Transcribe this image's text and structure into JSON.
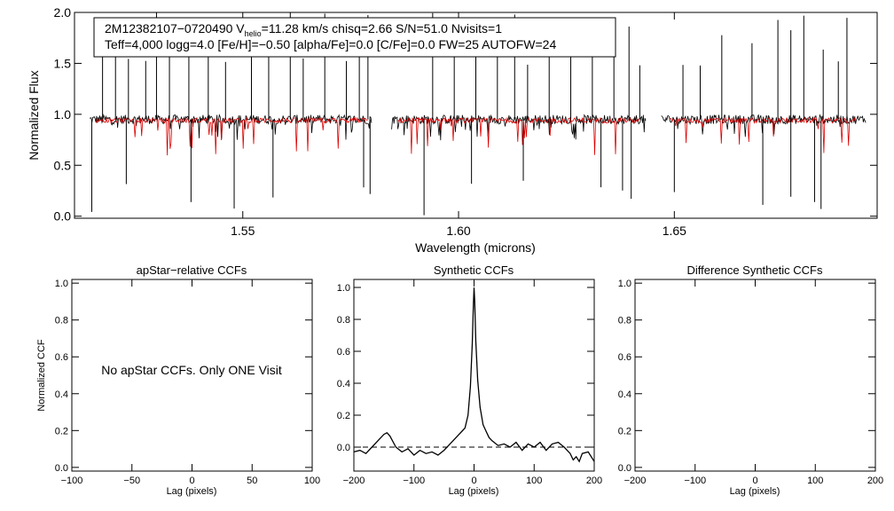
{
  "chart_data": [
    {
      "type": "line",
      "name": "spectrum",
      "xlabel": "Wavelength (microns)",
      "ylabel": "Normalized Flux",
      "xlim": [
        1.511,
        1.697
      ],
      "ylim": [
        -0.02,
        2.0
      ],
      "xticks": [
        1.55,
        1.6,
        1.65
      ],
      "xtick_labels": [
        "1.55",
        "1.60",
        "1.65"
      ],
      "yticks": [
        0.0,
        0.5,
        1.0,
        1.5,
        2.0
      ],
      "ytick_labels": [
        "0.0",
        "0.5",
        "1.0",
        "1.5",
        "2.0"
      ],
      "info_line1": {
        "pre": "2M12382107−0720490  V",
        "sub": "helio",
        "post": "=11.28 km/s  chisq=2.66  S/N=51.0  Nvisits=1"
      },
      "info_line2": "Teff=4,000 logg=4.0 [Fe/H]=−0.50 [alpha/Fe]=0.0 [C/Fe]=0.0 FW=25 AUTOFW=24",
      "chips": [
        [
          1.5145,
          1.58
        ],
        [
          1.5845,
          1.6435
        ],
        [
          1.647,
          1.6945
        ]
      ],
      "model_chips": [
        [
          1.516,
          1.579
        ],
        [
          1.586,
          1.642
        ],
        [
          1.649,
          1.692
        ]
      ],
      "observed_color": "#000000",
      "model_color": "#dd0000",
      "continuum_level": 0.95,
      "upward_spikes": [
        1.5175,
        1.5205,
        1.5235,
        1.5275,
        1.53,
        1.533,
        1.5375,
        1.542,
        1.546,
        1.552,
        1.556,
        1.561,
        1.564,
        1.569,
        1.574,
        1.577,
        1.579,
        1.594,
        1.599,
        1.604,
        1.609,
        1.613,
        1.616,
        1.621,
        1.626,
        1.631,
        1.636,
        1.6395,
        1.642,
        1.652,
        1.656,
        1.661,
        1.668,
        1.674,
        1.677,
        1.68,
        1.6845,
        1.688,
        1.69
      ],
      "downward_spikes": [
        1.515,
        1.523,
        1.538,
        1.548,
        1.557,
        1.578,
        1.5795,
        1.592,
        1.603,
        1.615,
        1.633,
        1.638,
        1.64,
        1.65,
        1.6705,
        1.677,
        1.6825,
        1.684
      ]
    },
    {
      "type": "line",
      "name": "apstar-ccf",
      "title": "apStar−relative CCFs",
      "xlabel": "Lag (pixels)",
      "ylabel": "Normalized CCF",
      "xlim": [
        -100,
        100
      ],
      "ylim": [
        -0.02,
        1.02
      ],
      "xticks": [
        -100,
        -50,
        0,
        50,
        100
      ],
      "xtick_labels": [
        "−100",
        "−50",
        "0",
        "50",
        "100"
      ],
      "yticks": [
        0.0,
        0.2,
        0.4,
        0.6,
        0.8,
        1.0
      ],
      "ytick_labels": [
        "0.0",
        "0.2",
        "0.4",
        "0.6",
        "0.8",
        "1.0"
      ],
      "annotation": "No apStar CCFs.  Only ONE Visit",
      "series": []
    },
    {
      "type": "line",
      "name": "synthetic-ccf",
      "title": "Synthetic CCFs",
      "xlabel": "Lag (pixels)",
      "ylabel": "",
      "xlim": [
        -200,
        200
      ],
      "ylim": [
        -0.15,
        1.05
      ],
      "xticks": [
        -200,
        -100,
        0,
        100,
        200
      ],
      "xtick_labels": [
        "−200",
        "−100",
        "0",
        "100",
        "200"
      ],
      "yticks": [
        0.0,
        0.2,
        0.4,
        0.6,
        0.8,
        1.0
      ],
      "ytick_labels": [
        "0.0",
        "0.2",
        "0.4",
        "0.6",
        "0.8",
        "1.0"
      ],
      "zero_line": 0.0,
      "series": [
        {
          "x": [
            -200,
            -190,
            -180,
            -170,
            -160,
            -150,
            -145,
            -140,
            -130,
            -120,
            -110,
            -100,
            -90,
            -80,
            -70,
            -60,
            -50,
            -40,
            -30,
            -25,
            -20,
            -15,
            -10,
            -6,
            -3,
            -1,
            0,
            1,
            3,
            6,
            10,
            15,
            20,
            25,
            30,
            40,
            50,
            60,
            70,
            80,
            90,
            100,
            110,
            120,
            130,
            140,
            150,
            160,
            165,
            170,
            175,
            180,
            190,
            200
          ],
          "y": [
            -0.03,
            -0.02,
            -0.04,
            0.0,
            0.04,
            0.08,
            0.09,
            0.07,
            0.0,
            -0.03,
            -0.01,
            -0.05,
            -0.02,
            -0.04,
            -0.03,
            -0.05,
            -0.02,
            0.02,
            0.06,
            0.08,
            0.1,
            0.12,
            0.2,
            0.38,
            0.65,
            0.9,
            1.0,
            0.92,
            0.66,
            0.42,
            0.25,
            0.14,
            0.1,
            0.06,
            0.04,
            0.01,
            0.02,
            0.0,
            0.03,
            -0.02,
            0.02,
            0.0,
            0.03,
            -0.02,
            0.02,
            0.03,
            0.0,
            -0.04,
            -0.08,
            -0.06,
            -0.09,
            -0.04,
            -0.03,
            -0.09
          ]
        }
      ]
    },
    {
      "type": "line",
      "name": "difference-ccf",
      "title": "Difference Synthetic CCFs",
      "xlabel": "Lag (pixels)",
      "ylabel": "",
      "xlim": [
        -200,
        200
      ],
      "ylim": [
        -0.02,
        1.02
      ],
      "xticks": [
        -200,
        -100,
        0,
        100,
        200
      ],
      "xtick_labels": [
        "−200",
        "−100",
        "0",
        "100",
        "200"
      ],
      "yticks": [
        0.0,
        0.2,
        0.4,
        0.6,
        0.8,
        1.0
      ],
      "ytick_labels": [
        "0.0",
        "0.2",
        "0.4",
        "0.6",
        "0.8",
        "1.0"
      ],
      "series": []
    }
  ]
}
